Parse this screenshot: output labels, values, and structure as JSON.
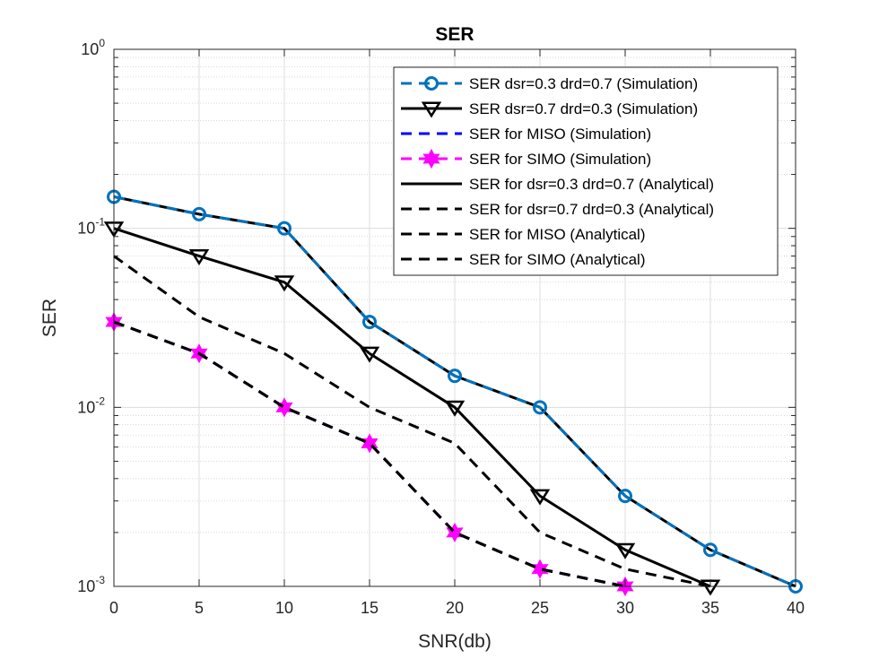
{
  "chart_data": {
    "type": "line",
    "title": "SER",
    "xlabel": "SNR(db)",
    "ylabel": "SER",
    "xlim": [
      0,
      40
    ],
    "ylim": [
      0.001,
      1
    ],
    "yscale": "log",
    "grid": true,
    "minor_grid": true,
    "legend_position": "top-right",
    "xticks": [
      "0",
      "5",
      "10",
      "15",
      "20",
      "25",
      "30",
      "35",
      "40"
    ],
    "yticks": [
      {
        "base": "10",
        "exp": "-3"
      },
      {
        "base": "10",
        "exp": "-2"
      },
      {
        "base": "10",
        "exp": "-1"
      },
      {
        "base": "10",
        "exp": "0"
      }
    ],
    "series": [
      {
        "name": "SER  dsr=0.3 drd=0.7 (Simulation)",
        "color": "#0072bd",
        "dash": "dashed",
        "marker": "circle",
        "x": [
          0,
          5,
          10,
          15,
          20,
          25,
          30,
          35,
          40
        ],
        "y": [
          0.15,
          0.12,
          0.1,
          0.03,
          0.015,
          0.01,
          0.0032,
          0.0016,
          0.001
        ]
      },
      {
        "name": "SER dsr=0.7 drd=0.3 (Simulation)",
        "color": "#000000",
        "dash": "solid",
        "marker": "triangle-down",
        "x": [
          0,
          5,
          10,
          15,
          20,
          25,
          30,
          35
        ],
        "y": [
          0.1,
          0.07,
          0.05,
          0.02,
          0.01,
          0.0032,
          0.0016,
          0.001
        ]
      },
      {
        "name": "SER for MISO (Simulation)",
        "color": "#0000ff",
        "dash": "dashed",
        "marker": "none",
        "x": [
          0,
          5,
          10,
          15,
          20,
          25,
          30
        ],
        "y": [
          0.03,
          0.02,
          0.01,
          0.0063,
          0.002,
          0.00125,
          0.001
        ]
      },
      {
        "name": "SER for SIMO (Simulation)",
        "color": "#ff00ff",
        "dash": "dashed",
        "marker": "hexagram",
        "x": [
          0,
          5,
          10,
          15,
          20,
          25,
          30
        ],
        "y": [
          0.03,
          0.02,
          0.01,
          0.0063,
          0.002,
          0.00125,
          0.001
        ]
      },
      {
        "name": "SER for dsr=0.3 drd=0.7 (Analytical)",
        "color": "#000000",
        "dash": "solid",
        "marker": "none",
        "x": [
          0,
          5,
          10,
          15,
          20,
          25,
          30,
          35,
          40
        ],
        "y": [
          0.15,
          0.12,
          0.1,
          0.03,
          0.015,
          0.01,
          0.0032,
          0.0016,
          0.001
        ]
      },
      {
        "name": "SER for dsr=0.7 drd=0.3 (Analytical)",
        "color": "#000000",
        "dash": "dashed",
        "marker": "none",
        "x": [
          0,
          5,
          10,
          15,
          20,
          25,
          30,
          35
        ],
        "y": [
          0.07,
          0.032,
          0.02,
          0.01,
          0.0063,
          0.002,
          0.00125,
          0.001
        ]
      },
      {
        "name": "SER for MISO (Analytical)",
        "color": "#000000",
        "dash": "dashed",
        "marker": "none",
        "x": [
          0,
          5,
          10,
          15,
          20,
          25,
          30
        ],
        "y": [
          0.03,
          0.02,
          0.01,
          0.0063,
          0.002,
          0.00125,
          0.001
        ]
      },
      {
        "name": "SER for SIMO (Analytical)",
        "color": "#000000",
        "dash": "dashed",
        "marker": "none",
        "x": [
          0,
          5,
          10,
          15,
          20,
          25,
          30
        ],
        "y": [
          0.03,
          0.02,
          0.01,
          0.0063,
          0.002,
          0.00125,
          0.001
        ]
      }
    ]
  }
}
